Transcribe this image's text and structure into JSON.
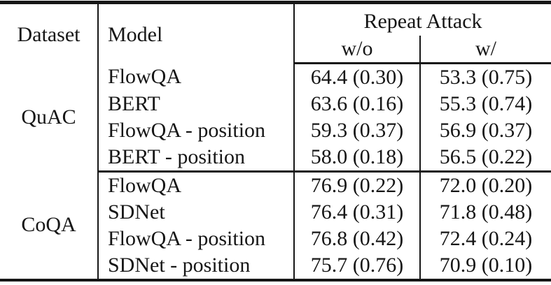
{
  "table": {
    "header": {
      "dataset": "Dataset",
      "model": "Model",
      "repeat_attack": "Repeat Attack",
      "without": "w/o",
      "with": "w/"
    },
    "colors": {
      "text": "#161616",
      "rule": "#161616",
      "background": "#ffffff"
    },
    "groups": [
      {
        "dataset": "QuAC",
        "rows": [
          {
            "model": "FlowQA",
            "wo": "64.4 (0.30)",
            "w": "53.3 (0.75)"
          },
          {
            "model": "BERT",
            "wo": "63.6 (0.16)",
            "w": "55.3 (0.74)"
          },
          {
            "model": "FlowQA - position",
            "wo": "59.3 (0.37)",
            "w": "56.9 (0.37)"
          },
          {
            "model": "BERT - position",
            "wo": "58.0 (0.18)",
            "w": "56.5 (0.22)"
          }
        ]
      },
      {
        "dataset": "CoQA",
        "rows": [
          {
            "model": "FlowQA",
            "wo": "76.9 (0.22)",
            "w": "72.0 (0.20)"
          },
          {
            "model": "SDNet",
            "wo": "76.4 (0.31)",
            "w": "71.8 (0.48)"
          },
          {
            "model": "FlowQA - position",
            "wo": "76.8 (0.42)",
            "w": "72.4 (0.24)"
          },
          {
            "model": "SDNet - position",
            "wo": "75.7 (0.76)",
            "w": "70.9 (0.10)"
          }
        ]
      }
    ]
  }
}
